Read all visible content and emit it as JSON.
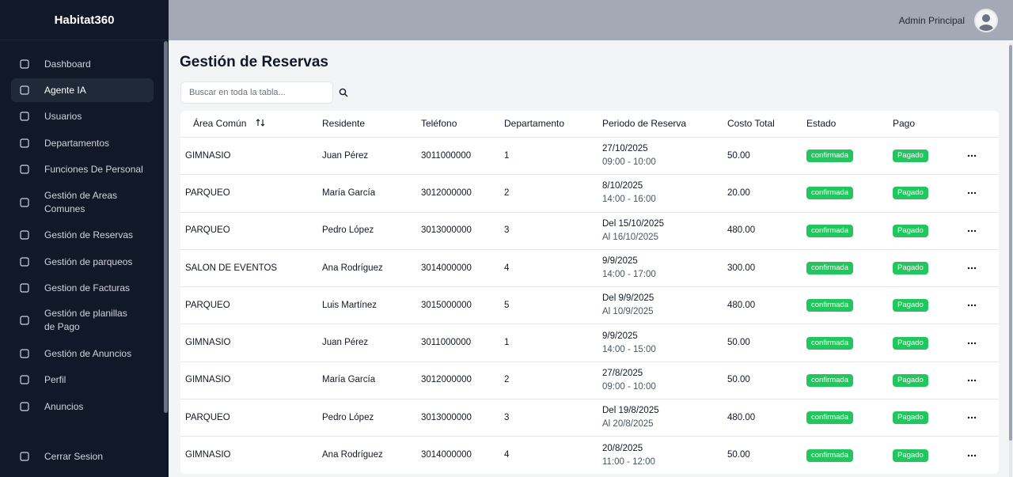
{
  "sidebar": {
    "brand": "Habitat360",
    "nav": [
      "Dashboard",
      "Agente IA",
      "Usuarios",
      "Departamentos",
      "Funciones De Personal",
      "Gestión de Areas Comunes",
      "Gestión de Reservas",
      "Gestión de parqueos",
      "Gestion de Facturas",
      "Gestión de planillas de Pago",
      "Gestión de Anuncios",
      "Perfil",
      "Anuncios"
    ],
    "logout": "Cerrar Sesion"
  },
  "header": {
    "user": "Admin Principal"
  },
  "page": {
    "title": "Gestión de Reservas",
    "search_placeholder": "Buscar en toda la tabla..."
  },
  "table": {
    "columns": [
      "Área Común",
      "Residente",
      "Teléfono",
      "Departamento",
      "Periodo de Reserva",
      "Costo Total",
      "Estado",
      "Pago"
    ],
    "rows": [
      [
        "GIMNASIO",
        "Juan Pérez",
        "3011000000",
        "1",
        [
          "27/10/2025",
          "09:00 - 10:00"
        ],
        "50.00",
        "confirmada",
        "Pagado"
      ],
      [
        "PARQUEO",
        "María García",
        "3012000000",
        "2",
        [
          "8/10/2025",
          "14:00 - 16:00"
        ],
        "20.00",
        "confirmada",
        "Pagado"
      ],
      [
        "PARQUEO",
        "Pedro López",
        "3013000000",
        "3",
        [
          "Del 15/10/2025",
          "Al 16/10/2025"
        ],
        "480.00",
        "confirmada",
        "Pagado"
      ],
      [
        "SALON DE EVENTOS",
        "Ana Rodríguez",
        "3014000000",
        "4",
        [
          "9/9/2025",
          "14:00 - 17:00"
        ],
        "300.00",
        "confirmada",
        "Pagado"
      ],
      [
        "PARQUEO",
        "Luis Martínez",
        "3015000000",
        "5",
        [
          "Del 9/9/2025",
          "Al 10/9/2025"
        ],
        "480.00",
        "confirmada",
        "Pagado"
      ],
      [
        "GIMNASIO",
        "Juan Pérez",
        "3011000000",
        "1",
        [
          "9/9/2025",
          "14:00 - 15:00"
        ],
        "50.00",
        "confirmada",
        "Pagado"
      ],
      [
        "GIMNASIO",
        "María García",
        "3012000000",
        "2",
        [
          "27/8/2025",
          "09:00 - 10:00"
        ],
        "50.00",
        "confirmada",
        "Pagado"
      ],
      [
        "PARQUEO",
        "Pedro López",
        "3013000000",
        "3",
        [
          "Del 19/8/2025",
          "Al 20/8/2025"
        ],
        "480.00",
        "confirmada",
        "Pagado"
      ],
      [
        "GIMNASIO",
        "Ana Rodríguez",
        "3014000000",
        "4",
        [
          "20/8/2025",
          "11:00 - 12:00"
        ],
        "50.00",
        "confirmada",
        "Pagado"
      ]
    ]
  }
}
